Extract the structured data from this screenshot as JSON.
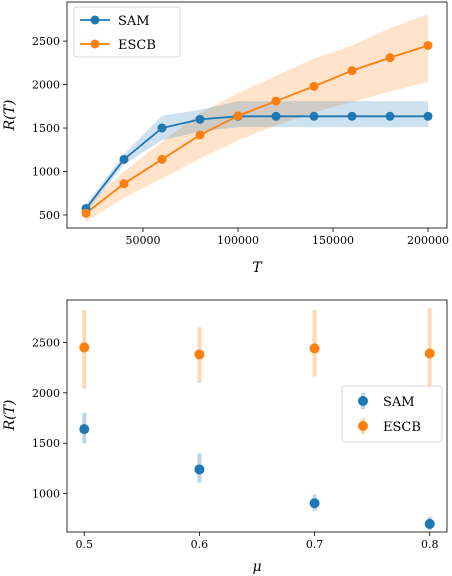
{
  "chart_data": [
    {
      "type": "line",
      "xlabel": "T",
      "ylabel": "R(T)",
      "xlim": [
        10000,
        210000
      ],
      "ylim": [
        350,
        2950
      ],
      "x_ticks": [
        50000,
        100000,
        150000,
        200000
      ],
      "x_tick_labels": [
        "50000",
        "100000",
        "150000",
        "200000"
      ],
      "y_ticks": [
        500,
        1000,
        1500,
        2000,
        2500
      ],
      "y_tick_labels": [
        "500",
        "1000",
        "1500",
        "2000",
        "2500"
      ],
      "legend_position": "top-left",
      "grid": false,
      "series": [
        {
          "name": "SAM",
          "color": "#1f77b4",
          "x": [
            20000,
            40000,
            60000,
            80000,
            100000,
            120000,
            140000,
            160000,
            180000,
            200000
          ],
          "y": [
            575,
            1140,
            1500,
            1600,
            1635,
            1635,
            1635,
            1635,
            1635,
            1635
          ],
          "lower": [
            530,
            1080,
            1360,
            1460,
            1510,
            1510,
            1510,
            1510,
            1510,
            1510
          ],
          "upper": [
            620,
            1200,
            1640,
            1710,
            1810,
            1810,
            1810,
            1810,
            1810,
            1810
          ]
        },
        {
          "name": "ESCB",
          "color": "#ff7f0e",
          "x": [
            20000,
            40000,
            60000,
            80000,
            100000,
            120000,
            140000,
            160000,
            180000,
            200000
          ],
          "y": [
            520,
            860,
            1140,
            1420,
            1640,
            1810,
            1980,
            2160,
            2310,
            2450
          ],
          "lower": [
            420,
            700,
            920,
            1150,
            1360,
            1530,
            1680,
            1800,
            1920,
            2030
          ],
          "upper": [
            600,
            1000,
            1340,
            1670,
            1900,
            2100,
            2300,
            2450,
            2650,
            2810
          ]
        }
      ]
    },
    {
      "type": "scatter",
      "xlabel": "μ",
      "ylabel": "R(T)",
      "xlim": [
        0.485,
        0.815
      ],
      "ylim": [
        620,
        2920
      ],
      "x_ticks": [
        0.5,
        0.6,
        0.7,
        0.8
      ],
      "x_tick_labels": [
        "0.5",
        "0.6",
        "0.7",
        "0.8"
      ],
      "y_ticks": [
        1000,
        1500,
        2000,
        2500
      ],
      "y_tick_labels": [
        "1000",
        "1500",
        "2000",
        "2500"
      ],
      "legend_position": "center-right",
      "grid": false,
      "series": [
        {
          "name": "SAM",
          "color": "#1f77b4",
          "x": [
            0.5,
            0.6,
            0.7,
            0.8
          ],
          "y": [
            1640,
            1240,
            905,
            700
          ],
          "lower": [
            1500,
            1110,
            830,
            640
          ],
          "upper": [
            1800,
            1400,
            990,
            770
          ]
        },
        {
          "name": "ESCB",
          "color": "#ff7f0e",
          "x": [
            0.5,
            0.6,
            0.7,
            0.8
          ],
          "y": [
            2450,
            2380,
            2440,
            2390
          ],
          "lower": [
            2040,
            2100,
            2160,
            2060
          ],
          "upper": [
            2820,
            2650,
            2820,
            2840
          ]
        }
      ]
    }
  ]
}
